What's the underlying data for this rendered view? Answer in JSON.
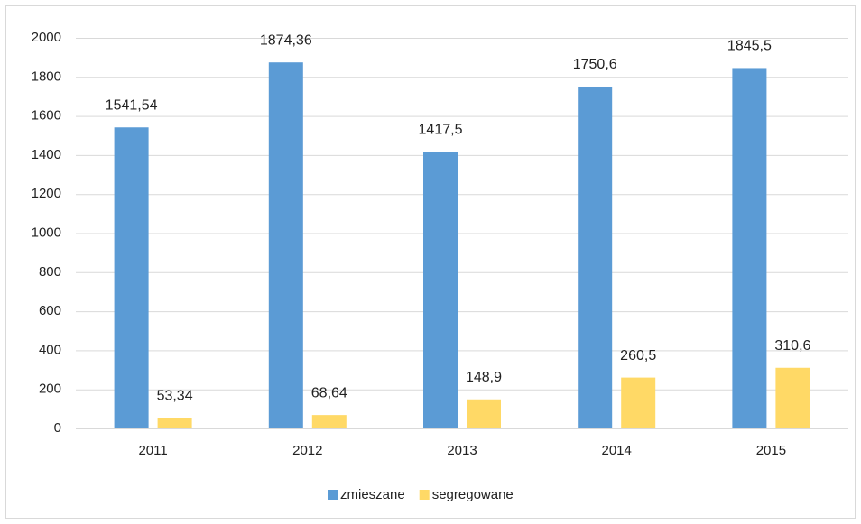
{
  "chart_data": {
    "type": "bar",
    "categories": [
      "2011",
      "2012",
      "2013",
      "2014",
      "2015"
    ],
    "series": [
      {
        "name": "zmieszane",
        "color": "#5b9bd5",
        "values": [
          1541.54,
          1874.36,
          1417.5,
          1750.6,
          1845.5
        ],
        "value_labels": [
          "1541,54",
          "1874,36",
          "1417,5",
          "1750,6",
          "1845,5"
        ]
      },
      {
        "name": "segregowane",
        "color": "#ffd966",
        "values": [
          53.34,
          68.64,
          148.9,
          260.5,
          310.6
        ],
        "value_labels": [
          "53,34",
          "68,64",
          "148,9",
          "260,5",
          "310,6"
        ]
      }
    ],
    "ylim": [
      0,
      2000
    ],
    "yticks": [
      0,
      200,
      400,
      600,
      800,
      1000,
      1200,
      1400,
      1600,
      1800,
      2000
    ],
    "grid": true,
    "legend": "bottom"
  }
}
